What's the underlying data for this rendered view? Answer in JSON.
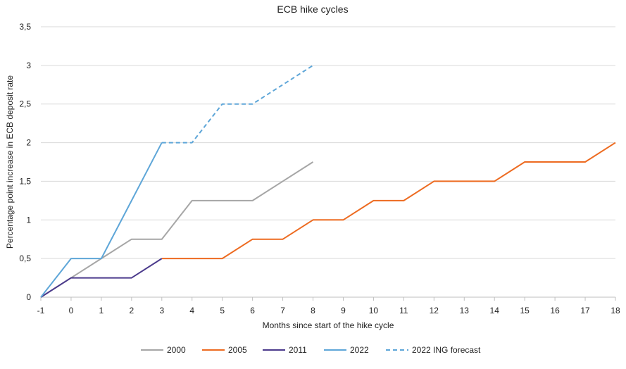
{
  "chart_data": {
    "type": "line",
    "title": "ECB hike cycles",
    "xlabel": "Months since start of the hike cycle",
    "ylabel": "Percentage point increase in ECB deposit rate",
    "xlim": [
      -1,
      18
    ],
    "ylim": [
      0,
      3.5
    ],
    "x_ticks": [
      -1,
      0,
      1,
      2,
      3,
      4,
      5,
      6,
      7,
      8,
      9,
      10,
      11,
      12,
      13,
      14,
      15,
      16,
      17,
      18
    ],
    "x_tick_labels": [
      "-1",
      "0",
      "1",
      "2",
      "3",
      "4",
      "5",
      "6",
      "7",
      "8",
      "9",
      "10",
      "11",
      "12",
      "13",
      "14",
      "15",
      "16",
      "17",
      "18"
    ],
    "y_ticks": [
      0,
      0.5,
      1,
      1.5,
      2,
      2.5,
      3,
      3.5
    ],
    "y_tick_labels": [
      "0",
      "0,5",
      "1",
      "1,5",
      "2",
      "2,5",
      "3",
      "3,5"
    ],
    "grid": "horizontal",
    "legend_position": "bottom",
    "series": [
      {
        "name": "2000",
        "color": "#a6a6a6",
        "dash": "solid",
        "x": [
          -1,
          0,
          1,
          2,
          3,
          4,
          5,
          6,
          7,
          8
        ],
        "y": [
          0,
          0.25,
          0.5,
          0.75,
          0.75,
          1.25,
          1.25,
          1.25,
          1.5,
          1.75
        ]
      },
      {
        "name": "2005",
        "color": "#ed6b21",
        "dash": "solid",
        "x": [
          3,
          4,
          5,
          6,
          7,
          8,
          9,
          10,
          11,
          12,
          13,
          14,
          15,
          16,
          17,
          18
        ],
        "y": [
          0.5,
          0.5,
          0.5,
          0.75,
          0.75,
          1.0,
          1.0,
          1.25,
          1.25,
          1.5,
          1.5,
          1.5,
          1.75,
          1.75,
          1.75,
          2.0
        ]
      },
      {
        "name": "2011",
        "color": "#4b3a8c",
        "dash": "solid",
        "x": [
          -1,
          0,
          1,
          2,
          3
        ],
        "y": [
          0,
          0.25,
          0.25,
          0.25,
          0.5
        ]
      },
      {
        "name": "2022",
        "color": "#5ea6d8",
        "dash": "solid",
        "x": [
          -1,
          0,
          1,
          2,
          3
        ],
        "y": [
          0,
          0.5,
          0.5,
          1.25,
          2.0
        ]
      },
      {
        "name": "2022 ING forecast",
        "color": "#5ea6d8",
        "dash": "dashed",
        "x": [
          3,
          4,
          5,
          6,
          7,
          8
        ],
        "y": [
          2.0,
          2.0,
          2.5,
          2.5,
          2.75,
          3.0
        ]
      }
    ]
  }
}
